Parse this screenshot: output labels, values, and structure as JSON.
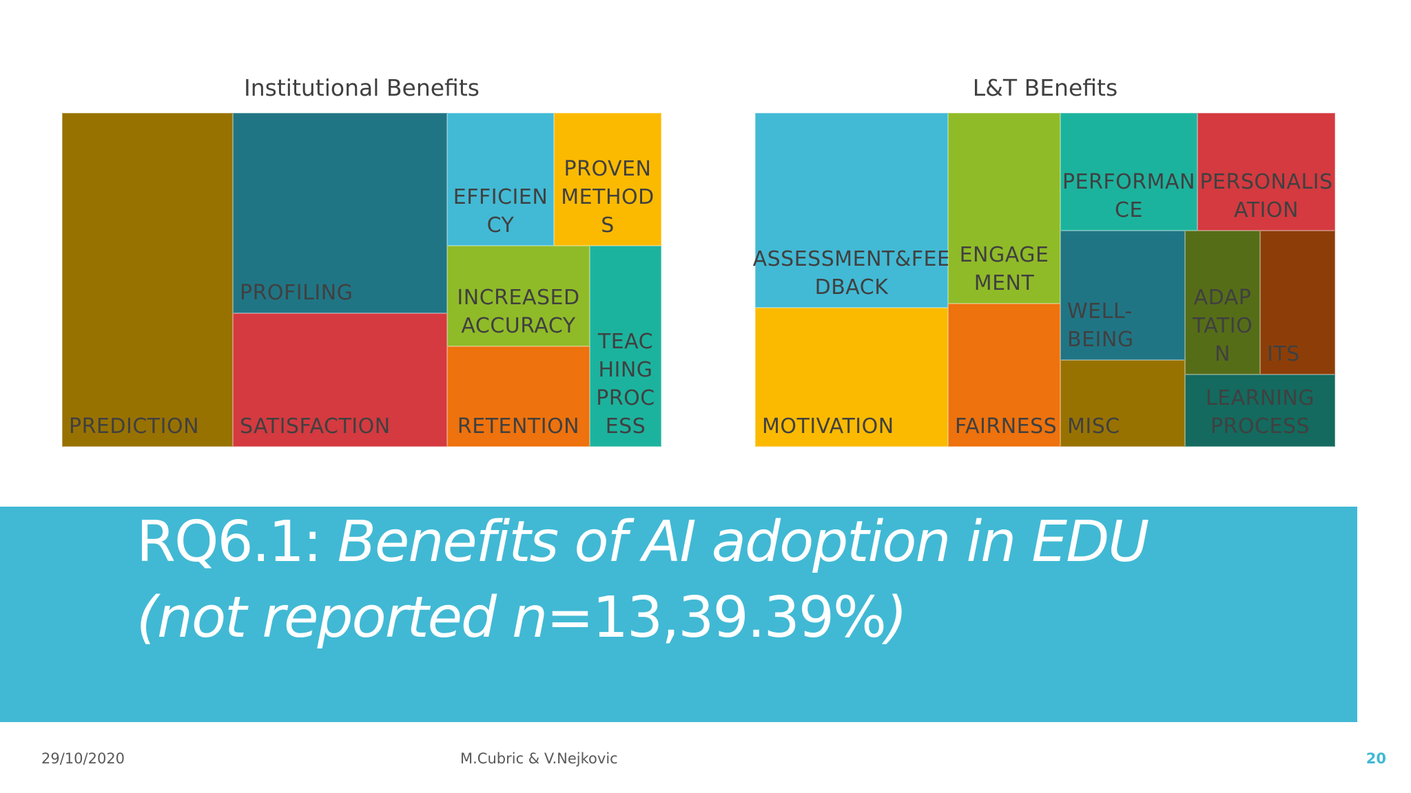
{
  "chart_data": [
    {
      "type": "treemap",
      "title": "Institutional Benefits",
      "tiles": [
        {
          "label": "PREDICTION",
          "color": "#987200"
        },
        {
          "label": "PROFILING",
          "color": "#207585"
        },
        {
          "label": "SATISFACTION",
          "color": "#d43a40"
        },
        {
          "label": "EFFICIEN\nCY",
          "color": "#42bad5"
        },
        {
          "label": "PROVEN\nMETHOD\nS",
          "color": "#fbba00"
        },
        {
          "label": "INCREASED\nACCURACY",
          "color": "#90bb28"
        },
        {
          "label": "RETENTION",
          "color": "#ee720d"
        },
        {
          "label": "TEAC\nHING\nPROC\nESS",
          "color": "#1cb39e"
        }
      ]
    },
    {
      "type": "treemap",
      "title": "L&T BEnefits",
      "tiles": [
        {
          "label": "ASSESSMENT&FEE\nDBACK",
          "color": "#42bad5"
        },
        {
          "label": "MOTIVATION",
          "color": "#fbba00"
        },
        {
          "label": "ENGAGE\nMENT",
          "color": "#90bb28"
        },
        {
          "label": "FAIRNESS",
          "color": "#ee720d"
        },
        {
          "label": "PERFORMAN\nCE",
          "color": "#1cb39e"
        },
        {
          "label": "PERSONALIS\nATION",
          "color": "#d43a40"
        },
        {
          "label": "WELL-\nBEING",
          "color": "#207585"
        },
        {
          "label": "MISC",
          "color": "#987200"
        },
        {
          "label": "ADAP\nTATIO\nN",
          "color": "#566d18"
        },
        {
          "label": "ITS",
          "color": "#8d3e08"
        },
        {
          "label": "LEARNING\nPROCESS",
          "color": "#146a5e"
        }
      ]
    }
  ],
  "banner": {
    "prefix": "RQ6.1: ",
    "title_italic": "Benefits of AI adoption in EDU",
    "line2_open": "(not reported ",
    "n_label": "n",
    "line2_value": "=13,39.39%",
    "line2_close": ")",
    "background": "#41b9d4"
  },
  "footer": {
    "date": "29/10/2020",
    "authors": "M.Cubric & V.Nejkovic",
    "page": "20"
  }
}
